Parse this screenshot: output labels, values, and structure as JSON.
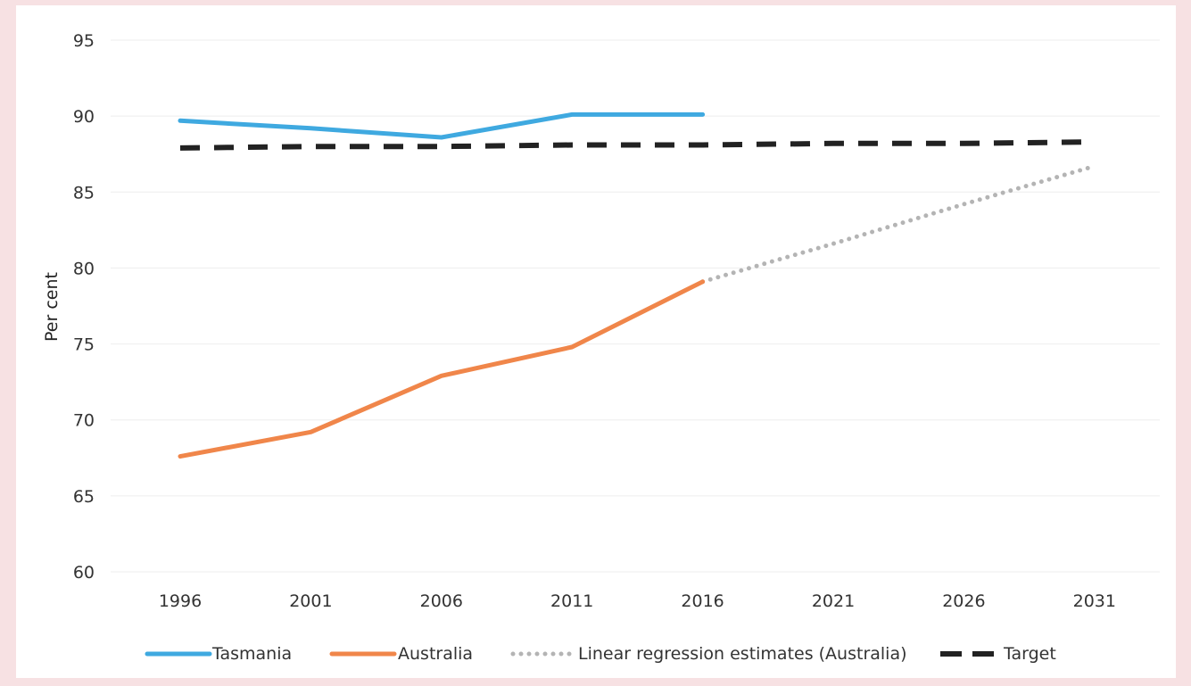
{
  "chart_data": {
    "type": "line",
    "title": "",
    "xlabel": "",
    "ylabel": "Per cent",
    "ylim": [
      60,
      95
    ],
    "yticks": [
      60,
      65,
      70,
      75,
      80,
      85,
      90,
      95
    ],
    "categories": [
      "1996",
      "2001",
      "2006",
      "2011",
      "2016",
      "2021",
      "2026",
      "2031"
    ],
    "grid": "horizontal",
    "legend_position": "bottom",
    "series": [
      {
        "name": "Tasmania",
        "color": "#3fa9e0",
        "style": "solid",
        "values": [
          89.7,
          89.2,
          88.6,
          90.1,
          90.1,
          null,
          null,
          null
        ]
      },
      {
        "name": "Australia",
        "color": "#f0864a",
        "style": "solid",
        "values": [
          67.6,
          69.2,
          72.9,
          74.8,
          79.1,
          null,
          null,
          null
        ]
      },
      {
        "name": "Linear regression estimates (Australia)",
        "color": "#b4b4b4",
        "style": "dotted",
        "values": [
          null,
          null,
          null,
          null,
          79.1,
          81.6,
          84.2,
          86.7
        ]
      },
      {
        "name": "Target",
        "color": "#222222",
        "style": "dashed",
        "values": [
          87.9,
          88.0,
          88.0,
          88.1,
          88.1,
          88.2,
          88.2,
          88.3
        ]
      }
    ]
  }
}
